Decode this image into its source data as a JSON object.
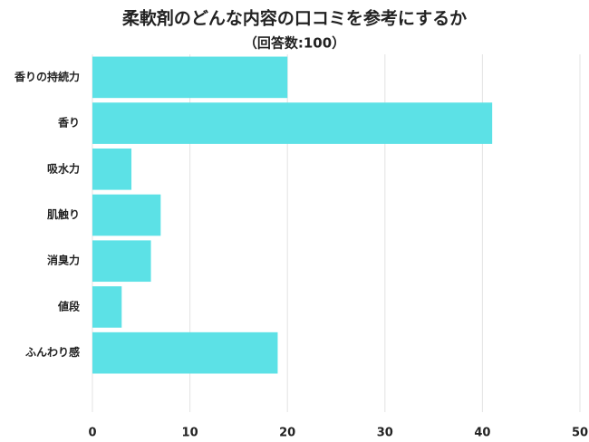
{
  "chart_data": {
    "type": "bar",
    "orientation": "horizontal",
    "title": "柔軟剤のどんな内容の口コミを参考にするか",
    "subtitle": "（回答数:100）",
    "categories": [
      "香りの持続力",
      "香り",
      "吸水力",
      "肌触り",
      "消臭力",
      "値段",
      "ふんわり感"
    ],
    "values": [
      20,
      41,
      4,
      7,
      6,
      3,
      19
    ],
    "color": "#5ce1e6",
    "xlim": [
      0,
      50
    ],
    "xticks": [
      0,
      10,
      20,
      30,
      40,
      50
    ],
    "grid": true
  }
}
